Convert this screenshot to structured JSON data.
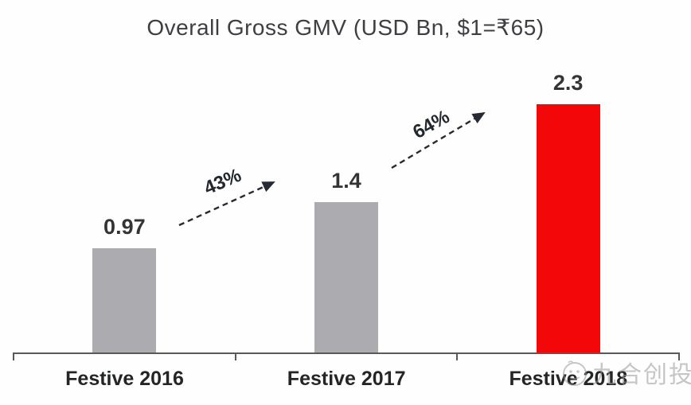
{
  "title": "Overall Gross GMV (USD Bn, $1=₹65)",
  "chart_data": {
    "type": "bar",
    "title": "Overall Gross GMV (USD Bn, $1=₹65)",
    "categories": [
      "Festive 2016",
      "Festive 2017",
      "Festive 2018"
    ],
    "values": [
      0.97,
      1.4,
      2.3
    ],
    "value_labels": [
      "0.97",
      "1.4",
      "2.3"
    ],
    "bar_colors": [
      "#acacb0",
      "#acacb0",
      "#f40708"
    ],
    "growth_annotations": [
      {
        "label": "43%",
        "from": "Festive 2016",
        "to": "Festive 2017"
      },
      {
        "label": "64%",
        "from": "Festive 2017",
        "to": "Festive 2018"
      }
    ],
    "xlabel": "",
    "ylabel": "",
    "ylim": [
      0,
      2.5
    ],
    "grid": false,
    "legend": false,
    "axis_color": "#595959",
    "arrow_color": "#262b33"
  },
  "watermark": {
    "text": "九合创投",
    "color": "#9a9a9a"
  }
}
